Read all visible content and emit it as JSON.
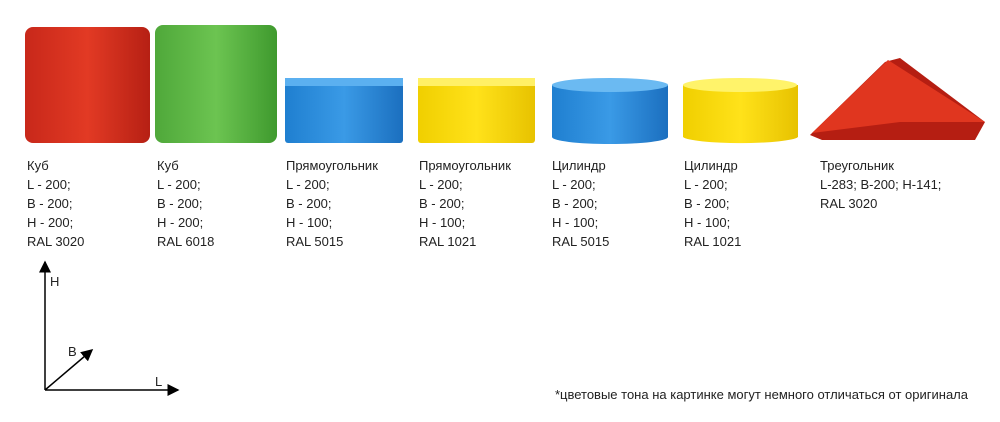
{
  "items": [
    {
      "name": "Куб",
      "lines": [
        "L - 200;",
        "B - 200;",
        "H - 200;",
        "RAL 3020"
      ]
    },
    {
      "name": "Куб",
      "lines": [
        "L - 200;",
        "B - 200;",
        "H - 200;",
        "RAL 6018"
      ]
    },
    {
      "name": "Прямоугольник",
      "lines": [
        "L - 200;",
        "B - 200;",
        "H - 100;",
        "RAL 5015"
      ]
    },
    {
      "name": "Прямоугольник",
      "lines": [
        "L - 200;",
        "B - 200;",
        "H - 100;",
        "RAL 1021"
      ]
    },
    {
      "name": "Цилиндр",
      "lines": [
        "L - 200;",
        "B - 200;",
        "H - 100;",
        "RAL 5015"
      ]
    },
    {
      "name": "Цилиндр",
      "lines": [
        "L - 200;",
        "B - 200;",
        "H - 100;",
        "RAL 1021"
      ]
    },
    {
      "name": "Треугольник",
      "lines": [
        "L-283; B-200; H-141;",
        "RAL 3020"
      ]
    }
  ],
  "axes": {
    "h": "H",
    "b": "B",
    "l": "L"
  },
  "footnote": "*цветовые тона на картинке могут немного отличаться от оригинала"
}
